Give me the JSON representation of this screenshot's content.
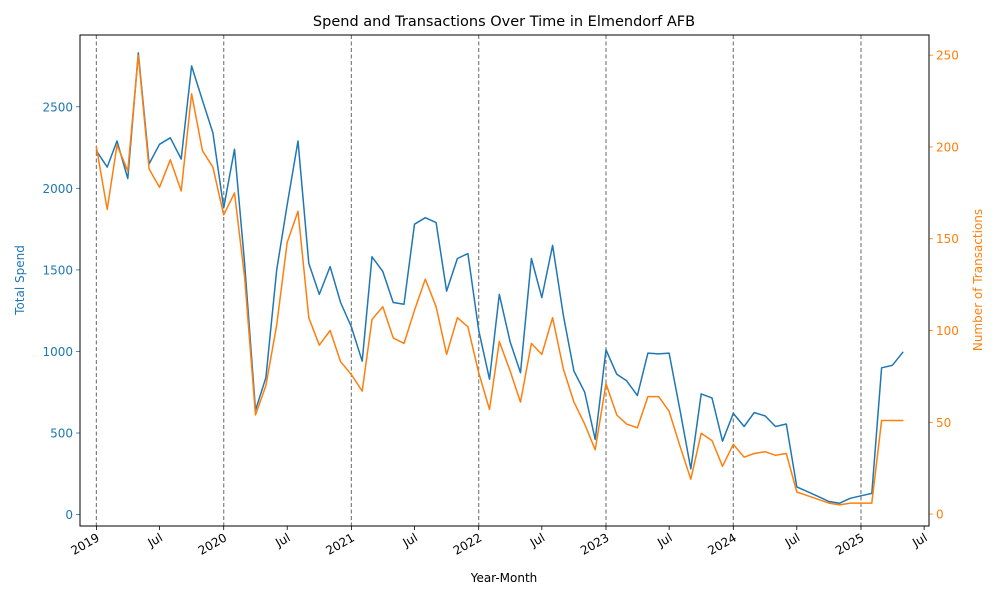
{
  "chart_data": {
    "type": "line",
    "title": "Spend and Transactions Over Time in Elmendorf AFB",
    "xlabel": "Year-Month",
    "ylabel_left": "Total Spend",
    "ylabel_right": "Number of Transactions",
    "xlim": [
      "2018-11-15",
      "2025-07-15"
    ],
    "ylim_left": [
      -70,
      2940
    ],
    "ylim_right": [
      -6.5,
      261
    ],
    "yticks_left": [
      0,
      500,
      1000,
      1500,
      2000,
      2500
    ],
    "yticks_right": [
      0,
      50,
      100,
      150,
      200,
      250
    ],
    "xticks": [
      {
        "date": "2019-01-01",
        "label": "2019"
      },
      {
        "date": "2019-07-01",
        "label": "Jul"
      },
      {
        "date": "2020-01-01",
        "label": "2020"
      },
      {
        "date": "2020-07-01",
        "label": "Jul"
      },
      {
        "date": "2021-01-01",
        "label": "2021"
      },
      {
        "date": "2021-07-01",
        "label": "Jul"
      },
      {
        "date": "2022-01-01",
        "label": "2022"
      },
      {
        "date": "2022-07-01",
        "label": "Jul"
      },
      {
        "date": "2023-01-01",
        "label": "2023"
      },
      {
        "date": "2023-07-01",
        "label": "Jul"
      },
      {
        "date": "2024-01-01",
        "label": "2024"
      },
      {
        "date": "2024-07-01",
        "label": "Jul"
      },
      {
        "date": "2025-01-01",
        "label": "2025"
      },
      {
        "date": "2025-07-01",
        "label": "Jul"
      }
    ],
    "vlines": [
      "2019-01-01",
      "2020-01-01",
      "2021-01-01",
      "2022-01-01",
      "2023-01-01",
      "2024-01-01",
      "2025-01-01"
    ],
    "x": [
      "2019-01",
      "2019-02",
      "2019-03",
      "2019-04",
      "2019-05",
      "2019-06",
      "2019-07",
      "2019-08",
      "2019-09",
      "2019-10",
      "2019-11",
      "2019-12",
      "2020-01",
      "2020-02",
      "2020-03",
      "2020-04",
      "2020-05",
      "2020-06",
      "2020-07",
      "2020-08",
      "2020-09",
      "2020-10",
      "2020-11",
      "2020-12",
      "2021-01",
      "2021-02",
      "2021-03",
      "2021-04",
      "2021-05",
      "2021-06",
      "2021-07",
      "2021-08",
      "2021-09",
      "2021-10",
      "2021-11",
      "2021-12",
      "2022-01",
      "2022-02",
      "2022-03",
      "2022-04",
      "2022-05",
      "2022-06",
      "2022-07",
      "2022-08",
      "2022-09",
      "2022-10",
      "2022-11",
      "2022-12",
      "2023-01",
      "2023-02",
      "2023-03",
      "2023-04",
      "2023-05",
      "2023-06",
      "2023-07",
      "2023-08",
      "2023-09",
      "2023-10",
      "2023-11",
      "2023-12",
      "2024-01",
      "2024-02",
      "2024-03",
      "2024-04",
      "2024-05",
      "2024-06",
      "2024-07",
      "2024-08",
      "2024-09",
      "2024-10",
      "2024-11",
      "2024-12",
      "2025-01",
      "2025-02",
      "2025-03",
      "2025-04",
      "2025-05"
    ],
    "series": [
      {
        "name": "Total Spend",
        "axis": "left",
        "color": "#1f77b4",
        "values": [
          2230,
          2130,
          2290,
          2060,
          2830,
          2150,
          2270,
          2310,
          2180,
          2750,
          2540,
          2340,
          1880,
          2240,
          1540,
          640,
          840,
          1500,
          1900,
          2290,
          1540,
          1350,
          1520,
          1300,
          1150,
          940,
          1580,
          1490,
          1300,
          1290,
          1780,
          1820,
          1790,
          1370,
          1570,
          1600,
          1130,
          830,
          1350,
          1060,
          870,
          1570,
          1330,
          1650,
          1220,
          880,
          750,
          460,
          1010,
          860,
          820,
          730,
          990,
          985,
          990,
          640,
          280,
          740,
          715,
          450,
          620,
          540,
          625,
          605,
          540,
          555,
          170,
          140,
          110,
          80,
          70,
          100,
          115,
          130,
          900,
          915,
          995
        ]
      },
      {
        "name": "Number of Transactions",
        "axis": "right",
        "color": "#ff7f0e",
        "values": [
          200,
          166,
          201,
          187,
          250,
          188,
          178,
          193,
          176,
          229,
          198,
          189,
          163,
          175,
          129,
          54,
          70,
          103,
          148,
          165,
          107,
          92,
          100,
          83,
          76,
          67,
          106,
          113,
          96,
          93,
          111,
          128,
          113,
          87,
          107,
          102,
          77,
          57,
          94,
          78,
          61,
          93,
          87,
          107,
          79,
          61,
          49,
          35,
          71,
          54,
          49,
          47,
          64,
          64,
          56,
          37,
          19,
          44,
          40,
          26,
          38,
          31,
          33,
          34,
          32,
          33,
          12,
          10,
          8,
          6,
          5,
          6,
          6,
          6,
          51,
          51,
          51
        ]
      }
    ]
  }
}
